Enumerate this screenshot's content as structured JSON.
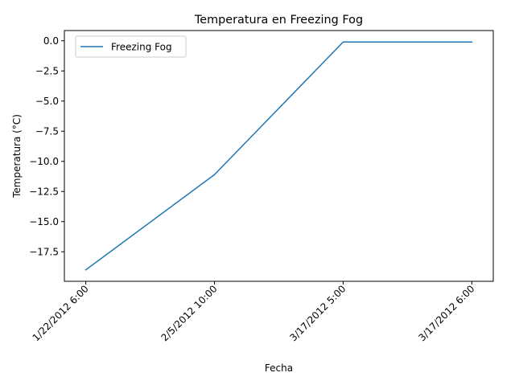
{
  "chart_data": {
    "type": "line",
    "title": "Temperatura en Freezing Fog",
    "xlabel": "Fecha",
    "ylabel": "Temperatura (°C)",
    "categories": [
      "1/22/2012 6:00",
      "2/5/2012 10:00",
      "3/17/2012 5:00",
      "3/17/2012 6:00"
    ],
    "series": [
      {
        "name": "Freezing Fog",
        "values": [
          -19.0,
          -11.1,
          -0.1,
          -0.1
        ],
        "color": "#1f77b4"
      }
    ],
    "ylim": [
      -19.95,
      0.85
    ],
    "yticks": [
      0.0,
      -2.5,
      -5.0,
      -7.5,
      -10.0,
      -12.5,
      -15.0,
      -17.5
    ],
    "ytick_labels": [
      "0.0",
      "−2.5",
      "−5.0",
      "−7.5",
      "−10.0",
      "−12.5",
      "−15.0",
      "−17.5"
    ],
    "grid": false,
    "legend_position": "upper-left",
    "xtick_rotation": 45
  }
}
